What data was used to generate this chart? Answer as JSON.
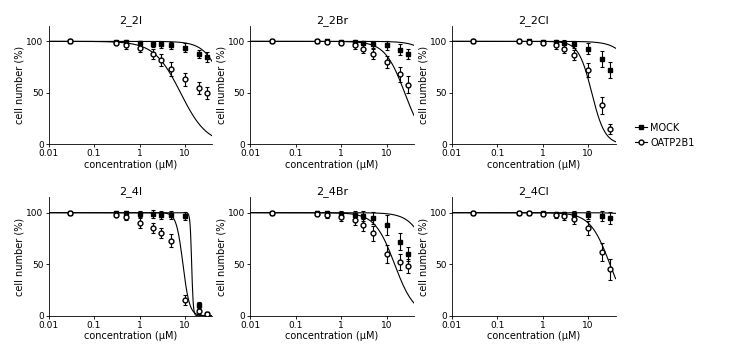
{
  "panels": [
    {
      "title": "2_2I",
      "mock_x": [
        0.03,
        0.3,
        0.5,
        1,
        2,
        3,
        5,
        10,
        20,
        30
      ],
      "mock_y": [
        100,
        99,
        99,
        98,
        97,
        97,
        96,
        94,
        88,
        85
      ],
      "mock_err": [
        1,
        2,
        2,
        2,
        2,
        3,
        3,
        4,
        4,
        5
      ],
      "oatp_x": [
        0.03,
        0.3,
        0.5,
        1,
        2,
        3,
        5,
        10,
        20,
        30
      ],
      "oatp_y": [
        100,
        98,
        96,
        94,
        88,
        82,
        73,
        63,
        55,
        50
      ],
      "oatp_err": [
        1,
        2,
        3,
        4,
        5,
        6,
        7,
        6,
        6,
        6
      ],
      "mock_ic50": 80,
      "oatp_ic50": 8,
      "mock_hill": 2,
      "oatp_hill": 1.5,
      "draw_mock_curve": true,
      "draw_oatp_curve": true
    },
    {
      "title": "2_2Br",
      "mock_x": [
        0.03,
        0.3,
        0.5,
        1,
        2,
        3,
        5,
        10,
        20,
        30
      ],
      "mock_y": [
        100,
        100,
        100,
        99,
        99,
        98,
        97,
        96,
        92,
        88
      ],
      "mock_err": [
        1,
        1,
        2,
        2,
        2,
        2,
        3,
        4,
        5,
        5
      ],
      "oatp_x": [
        0.03,
        0.3,
        0.5,
        1,
        2,
        3,
        5,
        10,
        20,
        30
      ],
      "oatp_y": [
        100,
        100,
        99,
        98,
        96,
        93,
        88,
        80,
        68,
        58
      ],
      "oatp_err": [
        1,
        1,
        2,
        2,
        3,
        4,
        5,
        6,
        7,
        8
      ],
      "mock_ic50": 200,
      "oatp_ic50": 25,
      "mock_hill": 2,
      "oatp_hill": 2,
      "draw_mock_curve": true,
      "draw_oatp_curve": true
    },
    {
      "title": "2_2Cl",
      "mock_x": [
        0.03,
        0.3,
        0.5,
        1,
        2,
        3,
        5,
        10,
        20,
        30
      ],
      "mock_y": [
        100,
        100,
        100,
        99,
        99,
        98,
        97,
        93,
        83,
        72
      ],
      "mock_err": [
        1,
        1,
        2,
        2,
        2,
        3,
        3,
        5,
        8,
        8
      ],
      "oatp_x": [
        0.03,
        0.3,
        0.5,
        1,
        2,
        3,
        5,
        10,
        20,
        30
      ],
      "oatp_y": [
        100,
        100,
        99,
        98,
        96,
        93,
        87,
        72,
        38,
        15
      ],
      "oatp_err": [
        1,
        1,
        2,
        2,
        3,
        4,
        5,
        7,
        8,
        5
      ],
      "mock_ic50": 150,
      "oatp_ic50": 12,
      "mock_hill": 2,
      "oatp_hill": 3,
      "draw_mock_curve": true,
      "draw_oatp_curve": true
    },
    {
      "title": "2_4I",
      "mock_x": [
        0.03,
        0.3,
        0.5,
        1,
        2,
        3,
        5,
        10,
        20,
        30
      ],
      "mock_y": [
        100,
        100,
        100,
        99,
        99,
        98,
        98,
        97,
        10,
        2
      ],
      "mock_err": [
        1,
        2,
        2,
        3,
        4,
        4,
        4,
        4,
        3,
        2
      ],
      "oatp_x": [
        0.03,
        0.3,
        0.5,
        1,
        2,
        3,
        5,
        10,
        20,
        30
      ],
      "oatp_y": [
        100,
        98,
        96,
        90,
        85,
        80,
        73,
        15,
        5,
        2
      ],
      "oatp_err": [
        1,
        2,
        3,
        5,
        5,
        5,
        6,
        5,
        3,
        2
      ],
      "mock_ic50": 14,
      "oatp_ic50": 9,
      "mock_hill": 25,
      "oatp_hill": 6,
      "draw_mock_curve": true,
      "draw_oatp_curve": true
    },
    {
      "title": "2_4Br",
      "mock_x": [
        0.03,
        0.3,
        0.5,
        1,
        2,
        3,
        5,
        10,
        20,
        30
      ],
      "mock_y": [
        100,
        100,
        100,
        99,
        98,
        97,
        95,
        88,
        72,
        60
      ],
      "mock_err": [
        1,
        2,
        2,
        3,
        4,
        5,
        6,
        10,
        8,
        7
      ],
      "oatp_x": [
        0.03,
        0.3,
        0.5,
        1,
        2,
        3,
        5,
        10,
        20,
        30
      ],
      "oatp_y": [
        100,
        99,
        98,
        96,
        93,
        88,
        80,
        60,
        52,
        48
      ],
      "oatp_err": [
        1,
        2,
        3,
        4,
        5,
        6,
        7,
        9,
        8,
        7
      ],
      "mock_ic50": 100,
      "oatp_ic50": 15,
      "mock_hill": 2,
      "oatp_hill": 2,
      "draw_mock_curve": true,
      "draw_oatp_curve": true
    },
    {
      "title": "2_4Cl",
      "mock_x": [
        0.03,
        0.3,
        0.5,
        1,
        2,
        3,
        5,
        10,
        20,
        30
      ],
      "mock_y": [
        100,
        100,
        100,
        100,
        99,
        99,
        99,
        98,
        97,
        95
      ],
      "mock_err": [
        1,
        1,
        1,
        1,
        2,
        2,
        3,
        4,
        5,
        6
      ],
      "oatp_x": [
        0.03,
        0.3,
        0.5,
        1,
        2,
        3,
        5,
        10,
        20,
        30
      ],
      "oatp_y": [
        100,
        100,
        100,
        99,
        98,
        97,
        94,
        85,
        62,
        45
      ],
      "oatp_err": [
        1,
        1,
        1,
        2,
        3,
        4,
        5,
        7,
        9,
        10
      ],
      "mock_ic50": 500,
      "oatp_ic50": 30,
      "mock_hill": 2,
      "oatp_hill": 2,
      "draw_mock_curve": true,
      "draw_oatp_curve": true
    }
  ],
  "legend_labels": [
    "MOCK",
    "OATP2B1"
  ],
  "xlabel": "concentration (μM)",
  "ylabel": "cell number (%)",
  "ylim": [
    0,
    115
  ],
  "yticks": [
    0,
    50,
    100
  ],
  "xlim": [
    0.01,
    40
  ],
  "xticks": [
    0.01,
    0.1,
    1,
    10
  ],
  "xtick_labels": [
    "0.01",
    "0.1",
    "1",
    "10"
  ],
  "background_color": "#ffffff",
  "line_color": "#000000",
  "marker_size": 3.5,
  "line_width": 0.8,
  "title_fontsize": 8,
  "label_fontsize": 7,
  "tick_fontsize": 6.5
}
